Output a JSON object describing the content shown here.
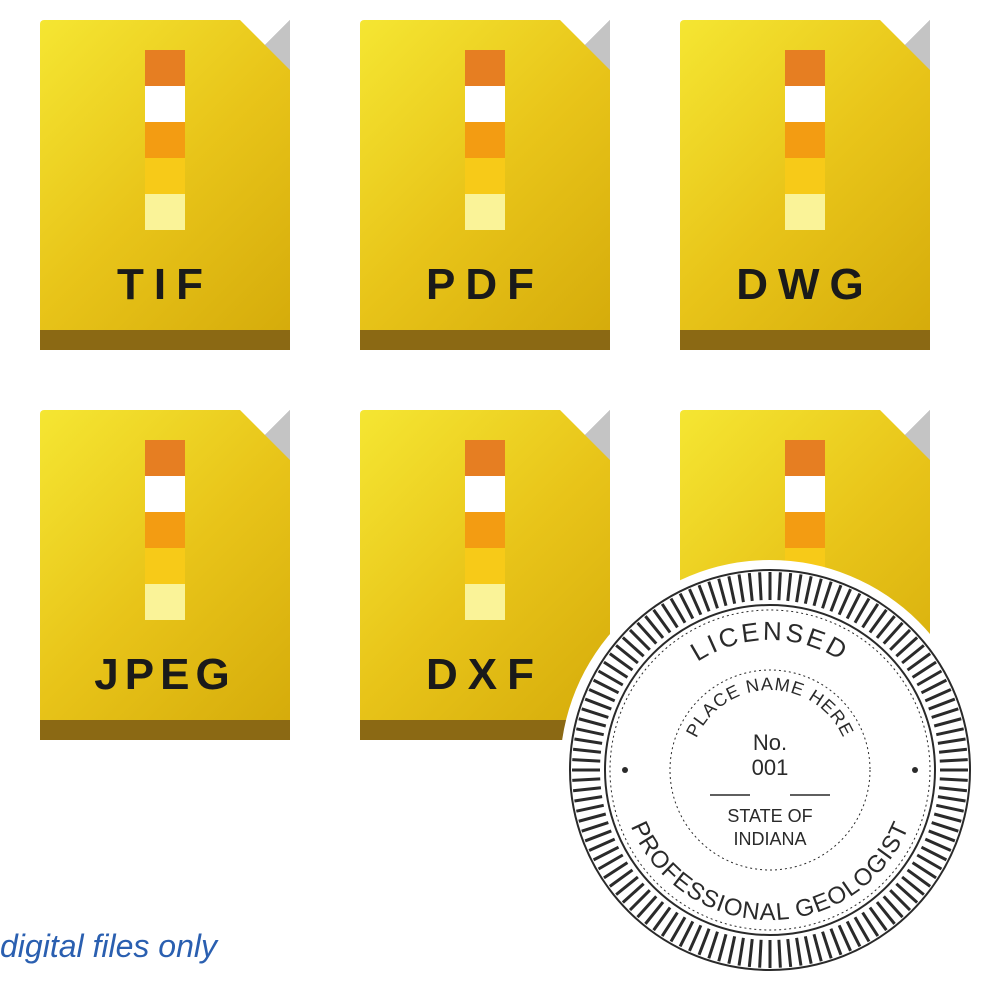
{
  "files": [
    {
      "label": "TIF"
    },
    {
      "label": "PDF"
    },
    {
      "label": "DWG"
    },
    {
      "label": "JPEG"
    },
    {
      "label": "DXF"
    },
    {
      "label": ""
    }
  ],
  "strip_colors": [
    "#e67e22",
    "#ffffff",
    "#f39c12",
    "#f7ca18",
    "#faf398"
  ],
  "file_gradient": {
    "start": "#f5e632",
    "mid": "#e8c419",
    "end": "#d4aa0a"
  },
  "file_bottom_color": "#8b6914",
  "caption": "digital files only",
  "caption_color": "#2a5fb0",
  "seal": {
    "outer_top": "LICENSED",
    "outer_bottom": "PROFESSIONAL GEOLOGIST",
    "inner_top": "PLACE NAME HERE",
    "center_line1": "No.",
    "center_line2": "001",
    "center_line3": "STATE OF",
    "center_line4": "INDIANA",
    "text_color": "#2a2a2a"
  }
}
